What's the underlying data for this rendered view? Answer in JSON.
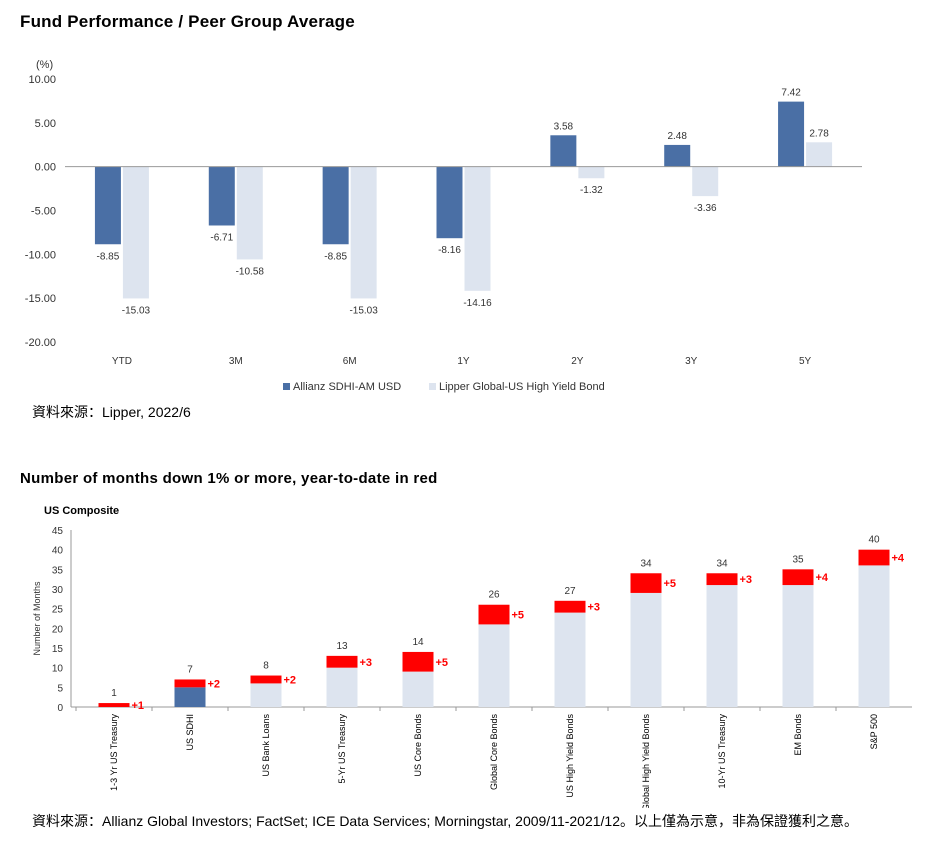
{
  "chart_data": [
    {
      "type": "bar",
      "title": "Fund Performance / Peer Group Average",
      "ylabel": "(%)",
      "xlabel": "",
      "categories": [
        "YTD",
        "3M",
        "6M",
        "1Y",
        "2Y",
        "3Y",
        "5Y"
      ],
      "series": [
        {
          "name": "Allianz SDHI-AM USD",
          "values": [
            -8.85,
            -6.71,
            -8.85,
            -8.16,
            3.58,
            2.48,
            7.42
          ],
          "color": "#4a6fa5"
        },
        {
          "name": "Lipper Global-US High Yield Bond",
          "values": [
            -15.03,
            -10.58,
            -15.03,
            -14.16,
            -1.32,
            -3.36,
            2.78
          ],
          "color": "#dde4ef"
        }
      ],
      "data_labels": {
        "series_0": [
          "-8.85",
          "-6.71",
          "-8.85",
          "-8.16",
          "3.58",
          "2.48",
          "7.42"
        ],
        "series_1": [
          "-15.03",
          "-10.58",
          "-15.03",
          "-14.16",
          "-1.32",
          "-3.36",
          "2.78"
        ]
      },
      "ylim": [
        -20,
        10
      ],
      "yticks": [
        "10.00",
        "5.00",
        "0.00",
        "-5.00",
        "-10.00",
        "-15.00",
        "-20.00"
      ],
      "ytick_values": [
        10,
        5,
        0,
        -5,
        -10,
        -15,
        -20
      ],
      "grid": false,
      "legend_position": "bottom"
    },
    {
      "type": "bar",
      "title": "Number of months down 1% or more, year-to-date in red",
      "subtitle": "US Composite",
      "ylabel": "Number of Months",
      "xlabel": "",
      "categories": [
        "1-3 Yr US Treasury",
        "US SDHI",
        "US Bank Loans",
        "5-Yr US Treasury",
        "US Core Bonds",
        "Global Core Bonds",
        "US High Yield Bonds",
        "Global High Yield Bonds",
        "10-Yr US Treasury",
        "EM Bonds",
        "S&P 500"
      ],
      "series": [
        {
          "values": [
            0,
            5,
            6,
            10,
            9,
            21,
            24,
            29,
            31,
            31,
            36
          ],
          "color_base": "#dde4ef",
          "color_highlight": "#4a6fa5",
          "highlight_index": 1
        },
        {
          "values": [
            1,
            2,
            2,
            3,
            5,
            5,
            3,
            5,
            3,
            4,
            4
          ],
          "color": "#ff0000"
        }
      ],
      "totals": [
        "1",
        "7",
        "8",
        "13",
        "14",
        "26",
        "27",
        "34",
        "34",
        "35",
        "40"
      ],
      "increments": [
        "+1",
        "+2",
        "+2",
        "+3",
        "+5",
        "+5",
        "+3",
        "+5",
        "+3",
        "+4",
        "+4"
      ],
      "ylim": [
        0,
        45
      ],
      "yticks": [
        "45",
        "40",
        "35",
        "30",
        "25",
        "20",
        "15",
        "10",
        "5",
        "0"
      ],
      "ytick_values": [
        45,
        40,
        35,
        30,
        25,
        20,
        15,
        10,
        5,
        0
      ],
      "grid": false,
      "stacked": true
    }
  ],
  "sources": {
    "chart1": "資料來源：Lipper, 2022/6",
    "chart2": "資料來源：Allianz Global Investors; FactSet; ICE Data Services; Morningstar, 2009/11-2021/12。以上僅為示意，非為保證獲利之意。"
  }
}
